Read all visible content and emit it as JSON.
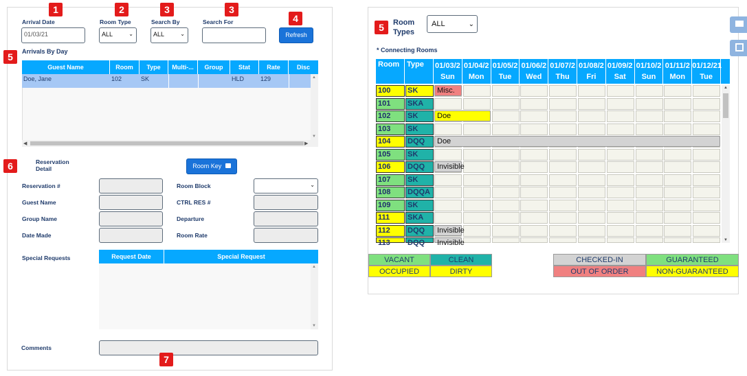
{
  "badges": {
    "b1": "1",
    "b2": "2",
    "b3a": "3",
    "b3b": "3",
    "b4": "4",
    "b5a": "5",
    "b5b": "5",
    "b6": "6",
    "b7": "7"
  },
  "search": {
    "arrival_date_label": "Arrival Date",
    "arrival_date_value": "01/03/21",
    "room_type_label": "Room Type",
    "room_type_value": "ALL",
    "search_by_label": "Search By",
    "search_by_value": "ALL",
    "search_for_label": "Search For",
    "search_for_value": "",
    "refresh_label": "Refresh"
  },
  "arrivals": {
    "title": "Arrivals By Day",
    "columns": [
      "Guest Name",
      "Room",
      "Type",
      "Multi-...",
      "Group",
      "Stat",
      "Rate",
      "Disc"
    ],
    "rows": [
      [
        "Doe, Jane",
        "102",
        "SK",
        "",
        "",
        "HLD",
        "129",
        ""
      ]
    ]
  },
  "reservation": {
    "title_line1": "Reservation",
    "title_line2": "Detail",
    "room_key_label": "Room Key",
    "fields_left": [
      "Reservation #",
      "Guest Name",
      "Group Name",
      "Date Made"
    ],
    "fields_right": [
      "Room Block",
      "CTRL RES #",
      "Departure",
      "Room Rate"
    ],
    "special_requests_label": "Special Requests",
    "sr_columns": [
      "Request Date",
      "Special Request"
    ],
    "comments_label": "Comments"
  },
  "room_grid": {
    "room_types_label_line1": "Room",
    "room_types_label_line2": "Types",
    "room_types_value": "ALL",
    "connecting_note": "* Connecting Rooms",
    "col_room": "Room",
    "col_type": "Type",
    "dates": [
      {
        "date": "01/03/2",
        "day": "Sun"
      },
      {
        "date": "01/04/2",
        "day": "Mon"
      },
      {
        "date": "01/05/2",
        "day": "Tue"
      },
      {
        "date": "01/06/2",
        "day": "Wed"
      },
      {
        "date": "01/07/2",
        "day": "Thu"
      },
      {
        "date": "01/08/2",
        "day": "Fri"
      },
      {
        "date": "01/09/2",
        "day": "Sat"
      },
      {
        "date": "01/10/2",
        "day": "Sun"
      },
      {
        "date": "01/11/2",
        "day": "Mon"
      },
      {
        "date": "01/12/21",
        "day": "Tue"
      }
    ],
    "rooms": [
      {
        "num": "100",
        "type": "SK",
        "num_color": "#ffff00",
        "type_color": "#ffff00"
      },
      {
        "num": "101",
        "type": "SKA",
        "num_color": "#7fe07f",
        "type_color": "#20b2a8"
      },
      {
        "num": "102",
        "type": "SK",
        "num_color": "#7fe07f",
        "type_color": "#20b2a8"
      },
      {
        "num": "103",
        "type": "SK",
        "num_color": "#7fe07f",
        "type_color": "#20b2a8"
      },
      {
        "num": "104",
        "type": "DQQ",
        "num_color": "#ffff00",
        "type_color": "#20b2a8"
      },
      {
        "num": "105",
        "type": "SK",
        "num_color": "#7fe07f",
        "type_color": "#20b2a8"
      },
      {
        "num": "106",
        "type": "DQQ",
        "num_color": "#ffff00",
        "type_color": "#20b2a8"
      },
      {
        "num": "107",
        "type": "SK",
        "num_color": "#7fe07f",
        "type_color": "#20b2a8"
      },
      {
        "num": "108",
        "type": "DQQA",
        "num_color": "#7fe07f",
        "type_color": "#20b2a8"
      },
      {
        "num": "109",
        "type": "SK",
        "num_color": "#7fe07f",
        "type_color": "#20b2a8"
      },
      {
        "num": "111",
        "type": "SKA",
        "num_color": "#ffff00",
        "type_color": "#20b2a8"
      },
      {
        "num": "112",
        "type": "DQQ",
        "num_color": "#ffff00",
        "type_color": "#20b2a8"
      },
      {
        "num": "113",
        "type": "DQQ",
        "num_color": "#ffff00",
        "type_color": "#20b2a8"
      }
    ],
    "reservations": {
      "misc": "Misc.",
      "doe102": "Doe",
      "doe104": "Doe",
      "invisible106": "Invisible",
      "invisible112": "Invisible",
      "invisible113": "Invisible"
    },
    "colors": {
      "misc": "#f08080",
      "doe102": "#ffff00",
      "doe104": "#d3d3d3",
      "invisible": "#d3d3d3"
    }
  },
  "legend": {
    "vacant": "VACANT",
    "clean": "CLEAN",
    "occupied": "OCCUPIED",
    "dirty": "DIRTY",
    "checked_in": "CHECKED-IN",
    "guaranteed": "GUARANTEED",
    "out_of_order": "OUT OF ORDER",
    "non_guaranteed": "NON-GUARANTEED",
    "colors": {
      "vacant": "#7fe07f",
      "clean": "#20b2a8",
      "occupied": "#ffff00",
      "dirty": "#ffff00",
      "checked_in": "#d3d3d3",
      "guaranteed": "#7fe07f",
      "out_of_order": "#f08080",
      "non_guaranteed": "#ffff00"
    }
  },
  "side_icons": [
    "mail-icon",
    "check-icon"
  ]
}
